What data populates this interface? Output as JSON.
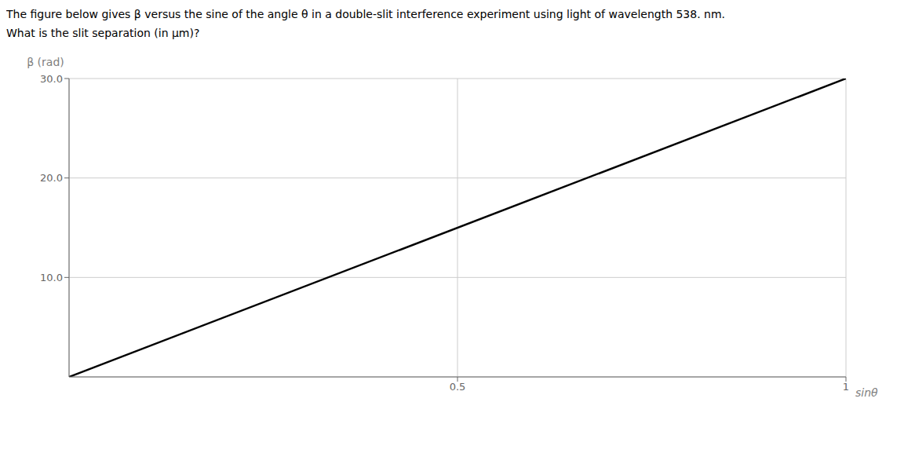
{
  "chart_data": {
    "type": "line",
    "title": "The figure below gives β versus the sine of the angle θ in a double-slit interference experiment using light of wavelength 538. nm.",
    "subtitle": "What is the slit separation (in μm)?",
    "xlabel": "sinθ",
    "ylabel": "β (rad)",
    "x": [
      0,
      1.0
    ],
    "values": [
      0,
      30.0
    ],
    "color": "#000000",
    "xlim": [
      0,
      1.0
    ],
    "ylim": [
      0,
      30.0
    ],
    "xticks": [
      0.5,
      1
    ],
    "yticks": [
      {
        "value": 10.0,
        "label": "10.0"
      },
      {
        "value": 20.0,
        "label": "20.0"
      },
      {
        "value": 30.0,
        "label": "30.0"
      }
    ],
    "grid": true
  }
}
